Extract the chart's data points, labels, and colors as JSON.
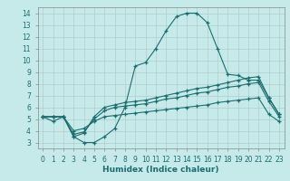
{
  "title": "",
  "xlabel": "Humidex (Indice chaleur)",
  "xlim": [
    -0.5,
    23.5
  ],
  "ylim": [
    2.5,
    14.5
  ],
  "xticks": [
    0,
    1,
    2,
    3,
    4,
    5,
    6,
    7,
    8,
    9,
    10,
    11,
    12,
    13,
    14,
    15,
    16,
    17,
    18,
    19,
    20,
    21,
    22,
    23
  ],
  "yticks": [
    3,
    4,
    5,
    6,
    7,
    8,
    9,
    10,
    11,
    12,
    13,
    14
  ],
  "bg_color": "#c6eaea",
  "grid_color": "#b0cccc",
  "line_color": "#1a6e6e",
  "lines": [
    {
      "x": [
        0,
        1,
        2,
        3,
        4,
        5,
        6,
        7,
        8,
        9,
        10,
        11,
        12,
        13,
        14,
        15,
        16,
        17,
        18,
        19,
        20,
        21,
        22,
        23
      ],
      "y": [
        5.2,
        4.8,
        5.2,
        3.5,
        3.0,
        3.0,
        3.5,
        4.2,
        6.0,
        9.5,
        9.8,
        11.0,
        12.5,
        13.7,
        14.0,
        14.0,
        13.2,
        11.0,
        8.8,
        8.7,
        8.3,
        8.3,
        6.8,
        5.4
      ]
    },
    {
      "x": [
        0,
        1,
        2,
        3,
        4,
        5,
        6,
        7,
        8,
        9,
        10,
        11,
        12,
        13,
        14,
        15,
        16,
        17,
        18,
        19,
        20,
        21,
        22,
        23
      ],
      "y": [
        5.2,
        5.2,
        5.2,
        3.5,
        3.8,
        5.2,
        6.0,
        6.2,
        6.4,
        6.5,
        6.6,
        6.8,
        7.0,
        7.2,
        7.4,
        7.6,
        7.7,
        7.9,
        8.1,
        8.3,
        8.5,
        8.6,
        6.8,
        5.4
      ]
    },
    {
      "x": [
        0,
        1,
        2,
        3,
        4,
        5,
        6,
        7,
        8,
        9,
        10,
        11,
        12,
        13,
        14,
        15,
        16,
        17,
        18,
        19,
        20,
        21,
        22,
        23
      ],
      "y": [
        5.2,
        5.2,
        5.2,
        3.7,
        3.9,
        5.0,
        5.7,
        6.0,
        6.1,
        6.2,
        6.3,
        6.5,
        6.7,
        6.8,
        7.0,
        7.2,
        7.3,
        7.5,
        7.7,
        7.8,
        8.0,
        8.1,
        6.5,
        5.2
      ]
    },
    {
      "x": [
        0,
        1,
        2,
        3,
        4,
        5,
        6,
        7,
        8,
        9,
        10,
        11,
        12,
        13,
        14,
        15,
        16,
        17,
        18,
        19,
        20,
        21,
        22,
        23
      ],
      "y": [
        5.2,
        5.2,
        5.2,
        4.0,
        4.2,
        4.8,
        5.2,
        5.3,
        5.4,
        5.5,
        5.6,
        5.7,
        5.8,
        5.9,
        6.0,
        6.1,
        6.2,
        6.4,
        6.5,
        6.6,
        6.7,
        6.8,
        5.4,
        4.8
      ]
    }
  ]
}
